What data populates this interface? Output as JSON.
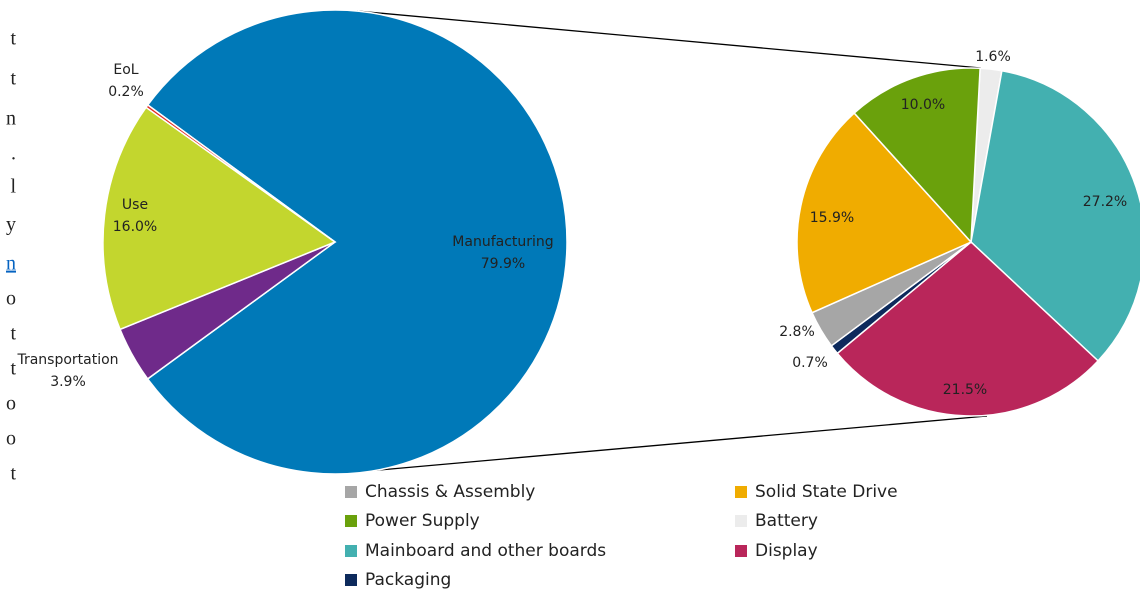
{
  "chart_data": [
    {
      "type": "pie",
      "categories": [
        "Manufacturing",
        "Transportation",
        "Use",
        "EoL"
      ],
      "values": [
        79.9,
        3.9,
        16.0,
        0.2
      ],
      "value_labels": [
        "79.9%",
        "3.9%",
        "16.0%",
        "0.2%"
      ],
      "colors": [
        "#0079b8",
        "#6f2a8a",
        "#c3d62e",
        "#e0281f"
      ]
    },
    {
      "type": "pie",
      "categories": [
        "Battery",
        "Mainboard and other boards",
        "Display",
        "Packaging",
        "Chassis & Assembly",
        "Solid State Drive",
        "Power Supply"
      ],
      "values": [
        1.6,
        27.2,
        21.5,
        0.7,
        2.8,
        15.9,
        10.0
      ],
      "value_labels": [
        "1.6%",
        "27.2%",
        "21.5%",
        "0.7%",
        "2.8%",
        "15.9%",
        "10.0%"
      ],
      "colors": [
        "#ececec",
        "#43b0b0",
        "#b9265a",
        "#0d2a5c",
        "#a6a6a6",
        "#f0ac00",
        "#6aa10c"
      ],
      "legend": "bottom"
    }
  ],
  "page_text": [
    "t",
    "t",
    "n",
    ".",
    "l",
    "y",
    "n",
    "o",
    "t",
    "t",
    "o",
    "o",
    "t"
  ]
}
